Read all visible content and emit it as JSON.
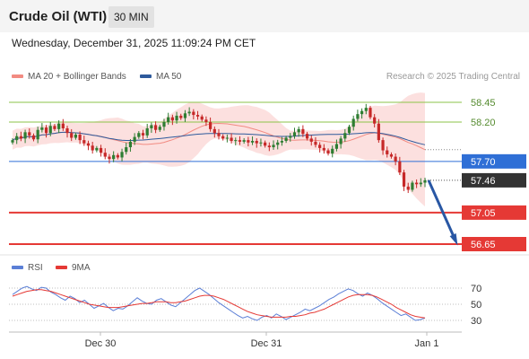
{
  "header": {
    "title": "Crude Oil (WTI)",
    "timeframe": "30 MIN"
  },
  "datetime": "Wednesday, December 31, 2025 11:09:24 PM CET",
  "legend": {
    "bb_label": "MA 20 + Bollinger Bands",
    "ma50_label": "MA 50",
    "rsi_label": "RSI",
    "rsi_ma_label": "9MA",
    "credit": "Research © 2025 Trading Central"
  },
  "colors": {
    "bb_fill": "#fbd6d4",
    "ma20": "#f28b82",
    "ma50": "#2e5a9c",
    "up": "#2e7d32",
    "down": "#c62828",
    "resistance": "#8bc34a",
    "support": "#e53935",
    "pivot": "#2f6fd6",
    "arrow": "#2957a4",
    "rsi": "#5b7fd6",
    "rsi_ma": "#e53935"
  },
  "chart_data": [
    {
      "type": "candlestick",
      "title": "Crude Oil (WTI)",
      "timeframe": "30 MIN",
      "x_ticks": [
        "Dec 30",
        "Dec 31",
        "Jan 1"
      ],
      "ylim": [
        56.5,
        58.6
      ],
      "levels": [
        {
          "value": 58.45,
          "label": "58.45",
          "kind": "resistance"
        },
        {
          "value": 58.2,
          "label": "58.20",
          "kind": "resistance"
        },
        {
          "value": 57.7,
          "label": "57.70",
          "kind": "pivot"
        },
        {
          "value": 57.46,
          "label": "57.46",
          "kind": "last"
        },
        {
          "value": 57.05,
          "label": "57.05",
          "kind": "support"
        },
        {
          "value": 56.65,
          "label": "56.65",
          "kind": "support"
        }
      ],
      "projection": {
        "from": 57.46,
        "to": 56.65,
        "direction": "down"
      },
      "series": [
        {
          "name": "MA 20 + Bollinger Bands"
        },
        {
          "name": "MA 50"
        }
      ],
      "closes": [
        57.97,
        58.02,
        57.99,
        58.07,
        58.03,
        57.98,
        58.1,
        58.13,
        58.06,
        58.15,
        58.11,
        58.18,
        58.12,
        58.06,
        58.0,
        58.04,
        57.97,
        57.93,
        57.9,
        57.84,
        57.87,
        57.81,
        57.76,
        57.73,
        57.78,
        57.75,
        57.82,
        57.88,
        57.95,
        58.01,
        58.06,
        58.03,
        58.12,
        58.16,
        58.1,
        58.14,
        58.2,
        58.26,
        58.22,
        58.28,
        58.25,
        58.31,
        58.33,
        58.29,
        58.27,
        58.23,
        58.2,
        58.11,
        58.06,
        58.02,
        57.99,
        58.0,
        57.96,
        57.97,
        57.95,
        57.97,
        57.94,
        57.96,
        57.93,
        57.94,
        57.9,
        57.88,
        57.91,
        57.94,
        57.96,
        58.0,
        58.02,
        58.07,
        58.11,
        58.05,
        57.99,
        57.95,
        57.91,
        57.87,
        57.84,
        57.8,
        57.86,
        57.92,
        57.99,
        58.06,
        58.14,
        58.24,
        58.3,
        58.34,
        58.38,
        58.26,
        58.18,
        57.97,
        57.84,
        57.79,
        57.76,
        57.7,
        57.56,
        57.38,
        57.34,
        57.43,
        57.41,
        57.43,
        57.46
      ]
    },
    {
      "type": "line",
      "title": "RSI",
      "x_ticks": [
        "Dec 30",
        "Dec 31",
        "Jan 1"
      ],
      "y_ticks": [
        70,
        50,
        30
      ],
      "ylim": [
        20,
        80
      ],
      "series": [
        {
          "name": "RSI",
          "values": [
            62,
            66,
            70,
            72,
            69,
            67,
            71,
            70,
            65,
            62,
            58,
            55,
            60,
            57,
            52,
            55,
            50,
            45,
            48,
            51,
            46,
            42,
            45,
            44,
            48,
            53,
            58,
            54,
            51,
            50,
            55,
            57,
            53,
            49,
            47,
            52,
            57,
            62,
            67,
            70,
            66,
            62,
            57,
            52,
            48,
            44,
            40,
            36,
            33,
            35,
            32,
            30,
            34,
            36,
            33,
            38,
            35,
            31,
            34,
            37,
            40,
            44,
            42,
            45,
            48,
            52,
            56,
            59,
            63,
            66,
            69,
            67,
            63,
            60,
            64,
            61,
            57,
            52,
            48,
            44,
            40,
            36,
            38,
            34,
            30,
            31,
            33
          ]
        },
        {
          "name": "9MA",
          "values": [
            60,
            62,
            64,
            66,
            67,
            68,
            68,
            67,
            66,
            64,
            62,
            60,
            58,
            56,
            54,
            52,
            50,
            49,
            48,
            47,
            46,
            46,
            46,
            47,
            48,
            49,
            50,
            51,
            51,
            52,
            53,
            53,
            53,
            52,
            52,
            53,
            54,
            56,
            58,
            60,
            61,
            61,
            60,
            58,
            56,
            53,
            50,
            47,
            44,
            41,
            39,
            37,
            36,
            35,
            34,
            34,
            34,
            34,
            35,
            35,
            36,
            37,
            39,
            40,
            42,
            44,
            47,
            50,
            53,
            56,
            59,
            61,
            62,
            62,
            62,
            61,
            59,
            56,
            53,
            50,
            46,
            43,
            40,
            37,
            35,
            34,
            33
          ]
        }
      ]
    }
  ]
}
